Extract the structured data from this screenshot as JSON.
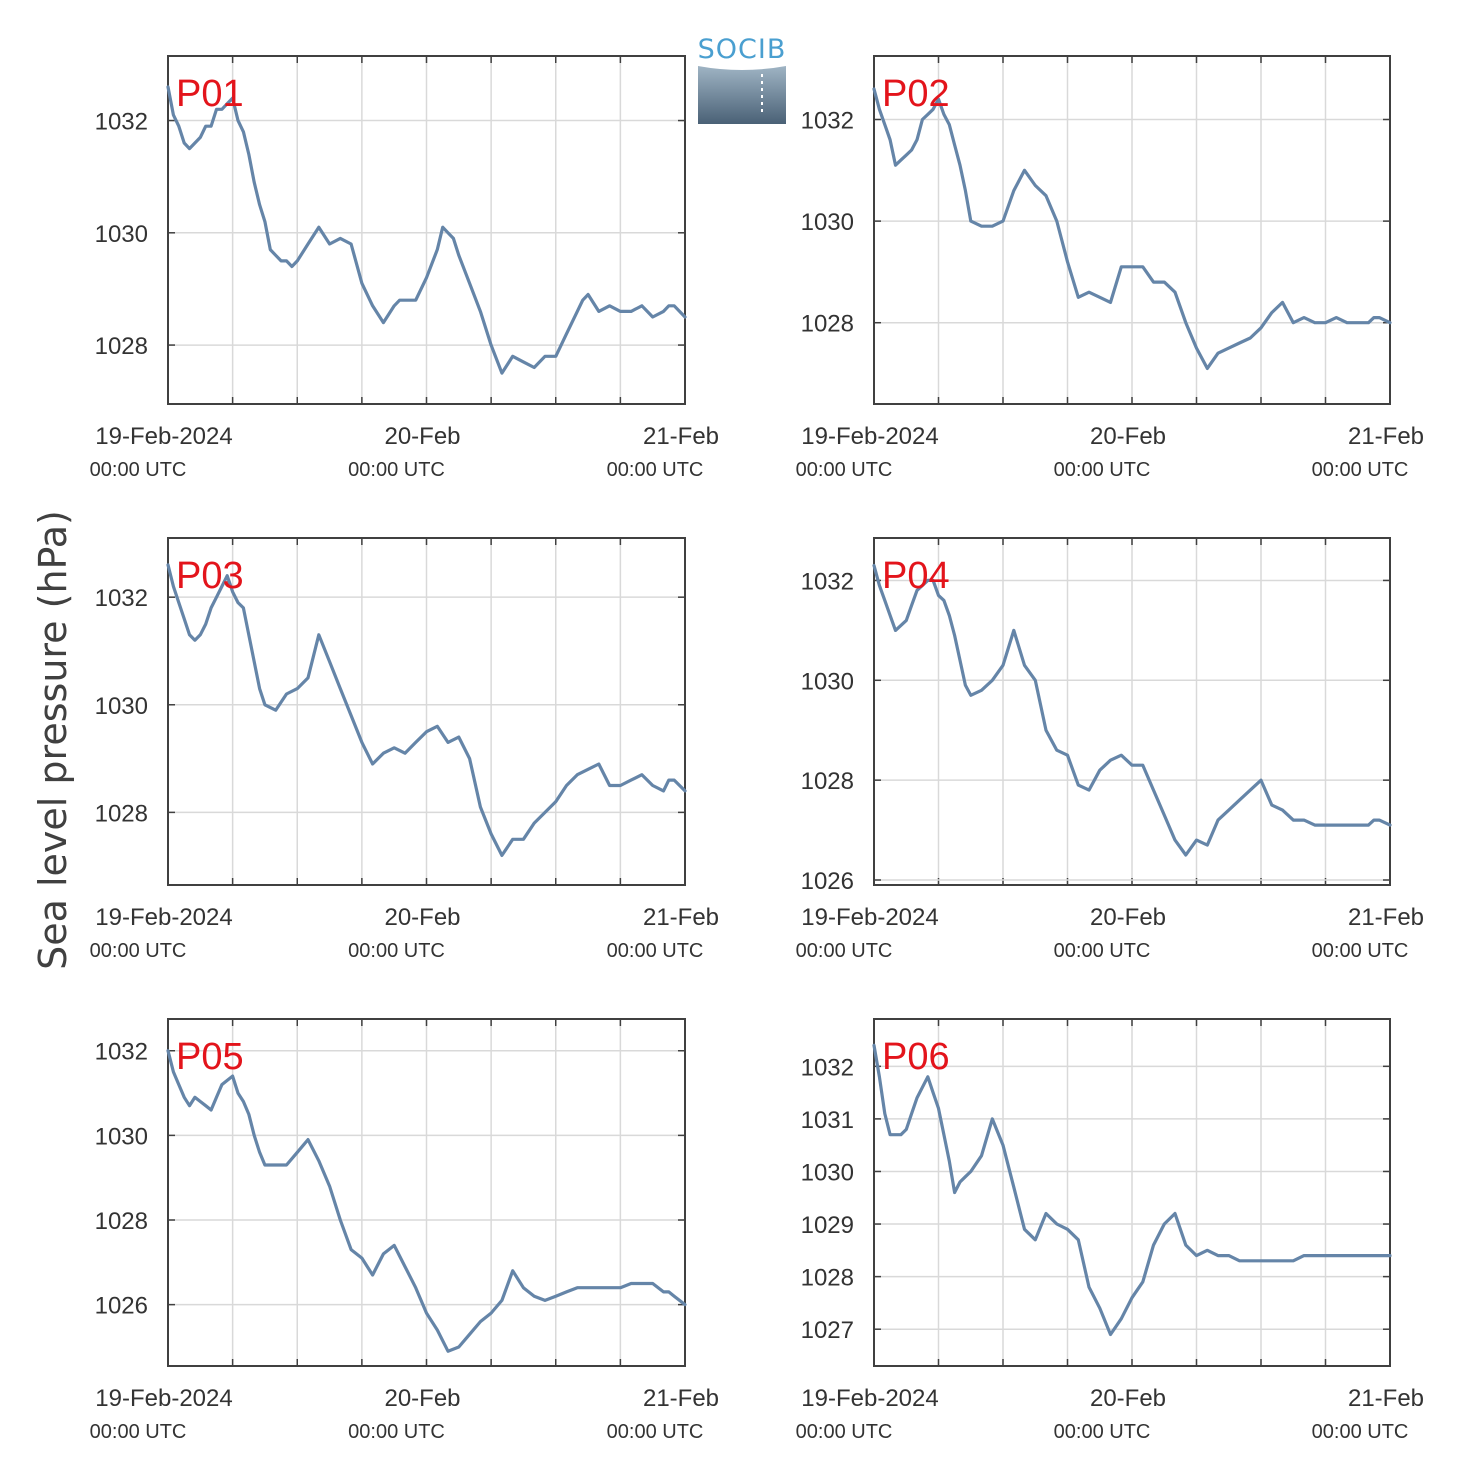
{
  "figure": {
    "ylabel": "Sea level pressure (hPa)",
    "logo_text": "SOCIB",
    "line_color": "#6585a8",
    "label_color": "#e3141b",
    "grid_color": "#d9d9d9",
    "axis_color": "#404040"
  },
  "chart_data": [
    {
      "type": "line",
      "title": "P01",
      "xlabel": "",
      "ylabel": "Sea level pressure (hPa)",
      "x_unit": "hours since 19-Feb-2024 00:00 UTC",
      "xlim": [
        0,
        48
      ],
      "ylim": [
        1026.95,
        1033.15
      ],
      "yticks": [
        1028,
        1030,
        1032
      ],
      "xticks": [
        0,
        24,
        48
      ],
      "xticklabels": [
        "19-Feb-2024",
        "20-Feb",
        "21-Feb"
      ],
      "xticksublabels": [
        "00:00 UTC",
        "00:00 UTC",
        "00:00 UTC"
      ],
      "grid": true,
      "x": [
        0,
        0.5,
        1,
        1.5,
        2,
        2.5,
        3,
        3.5,
        4,
        4.5,
        5,
        5.5,
        6,
        6.5,
        7,
        7.5,
        8,
        8.5,
        9,
        9.5,
        10,
        10.5,
        11,
        11.5,
        12,
        13,
        14,
        15,
        16,
        17,
        18,
        19,
        20,
        21,
        21.5,
        22,
        23,
        24,
        25,
        25.5,
        26,
        26.5,
        27,
        28,
        29,
        30,
        31,
        32,
        33,
        34,
        35,
        36,
        37,
        38,
        38.5,
        39,
        40,
        41,
        42,
        43,
        44,
        45,
        46,
        46.5,
        47,
        48
      ],
      "y": [
        1032.6,
        1032.1,
        1031.9,
        1031.6,
        1031.5,
        1031.6,
        1031.7,
        1031.9,
        1031.9,
        1032.2,
        1032.2,
        1032.3,
        1032.4,
        1032.0,
        1031.8,
        1031.4,
        1030.9,
        1030.5,
        1030.2,
        1029.7,
        1029.6,
        1029.5,
        1029.5,
        1029.4,
        1029.5,
        1029.8,
        1030.1,
        1029.8,
        1029.9,
        1029.8,
        1029.1,
        1028.7,
        1028.4,
        1028.7,
        1028.8,
        1028.8,
        1028.8,
        1029.2,
        1029.7,
        1030.1,
        1030.0,
        1029.9,
        1029.6,
        1029.1,
        1028.6,
        1028.0,
        1027.5,
        1027.8,
        1027.7,
        1027.6,
        1027.8,
        1027.8,
        1028.2,
        1028.6,
        1028.8,
        1028.9,
        1028.6,
        1028.7,
        1028.6,
        1028.6,
        1028.7,
        1028.5,
        1028.6,
        1028.7,
        1028.7,
        1028.5
      ]
    },
    {
      "type": "line",
      "title": "P02",
      "xlabel": "",
      "ylabel": "Sea level pressure (hPa)",
      "x_unit": "hours since 19-Feb-2024 00:00 UTC",
      "xlim": [
        0,
        48
      ],
      "ylim": [
        1026.4,
        1033.25
      ],
      "yticks": [
        1028,
        1030,
        1032
      ],
      "xticks": [
        0,
        24,
        48
      ],
      "xticklabels": [
        "19-Feb-2024",
        "20-Feb",
        "21-Feb"
      ],
      "xticksublabels": [
        "00:00 UTC",
        "00:00 UTC",
        "00:00 UTC"
      ],
      "grid": true,
      "x": [
        0,
        0.5,
        1,
        1.5,
        2,
        2.5,
        3,
        3.5,
        4,
        4.5,
        5,
        5.5,
        6,
        6.5,
        7,
        7.5,
        8,
        8.5,
        9,
        10,
        11,
        12,
        13,
        14,
        15,
        16,
        17,
        18,
        19,
        20,
        21,
        22,
        23,
        24,
        25,
        26,
        27,
        28,
        29,
        30,
        31,
        32,
        33,
        34,
        35,
        36,
        37,
        38,
        39,
        40,
        41,
        42,
        43,
        44,
        45,
        46,
        46.5,
        47,
        48
      ],
      "y": [
        1032.6,
        1032.2,
        1031.9,
        1031.6,
        1031.1,
        1031.2,
        1031.3,
        1031.4,
        1031.6,
        1032.0,
        1032.1,
        1032.2,
        1032.4,
        1032.1,
        1031.9,
        1031.5,
        1031.1,
        1030.6,
        1030.0,
        1029.9,
        1029.9,
        1030.0,
        1030.6,
        1031.0,
        1030.7,
        1030.5,
        1030.0,
        1029.2,
        1028.5,
        1028.6,
        1028.5,
        1028.4,
        1029.1,
        1029.1,
        1029.1,
        1028.8,
        1028.8,
        1028.6,
        1028.0,
        1027.5,
        1027.1,
        1027.4,
        1027.5,
        1027.6,
        1027.7,
        1027.9,
        1028.2,
        1028.4,
        1028.0,
        1028.1,
        1028.0,
        1028.0,
        1028.1,
        1028.0,
        1028.0,
        1028.0,
        1028.1,
        1028.1,
        1028.0
      ]
    },
    {
      "type": "line",
      "title": "P03",
      "xlabel": "",
      "ylabel": "Sea level pressure (hPa)",
      "x_unit": "hours since 19-Feb-2024 00:00 UTC",
      "xlim": [
        0,
        48
      ],
      "ylim": [
        1026.65,
        1033.1
      ],
      "yticks": [
        1028,
        1030,
        1032
      ],
      "xticks": [
        0,
        24,
        48
      ],
      "xticklabels": [
        "19-Feb-2024",
        "20-Feb",
        "21-Feb"
      ],
      "xticksublabels": [
        "00:00 UTC",
        "00:00 UTC",
        "00:00 UTC"
      ],
      "grid": true,
      "x": [
        0,
        0.5,
        1,
        1.5,
        2,
        2.5,
        3,
        3.5,
        4,
        4.5,
        5,
        5.5,
        6,
        6.5,
        7,
        7.5,
        8,
        8.5,
        9,
        10,
        11,
        12,
        13,
        14,
        15,
        16,
        17,
        18,
        19,
        20,
        21,
        22,
        23,
        24,
        25,
        26,
        27,
        28,
        29,
        30,
        31,
        32,
        33,
        34,
        35,
        36,
        37,
        38,
        39,
        40,
        41,
        42,
        43,
        44,
        45,
        46,
        46.5,
        47,
        48
      ],
      "y": [
        1032.6,
        1032.2,
        1031.9,
        1031.6,
        1031.3,
        1031.2,
        1031.3,
        1031.5,
        1031.8,
        1032.0,
        1032.2,
        1032.4,
        1032.1,
        1031.9,
        1031.8,
        1031.3,
        1030.8,
        1030.3,
        1030.0,
        1029.9,
        1030.2,
        1030.3,
        1030.5,
        1031.3,
        1030.8,
        1030.3,
        1029.8,
        1029.3,
        1028.9,
        1029.1,
        1029.2,
        1029.1,
        1029.3,
        1029.5,
        1029.6,
        1029.3,
        1029.4,
        1029.0,
        1028.1,
        1027.6,
        1027.2,
        1027.5,
        1027.5,
        1027.8,
        1028.0,
        1028.2,
        1028.5,
        1028.7,
        1028.8,
        1028.9,
        1028.5,
        1028.5,
        1028.6,
        1028.7,
        1028.5,
        1028.4,
        1028.6,
        1028.6,
        1028.4
      ]
    },
    {
      "type": "line",
      "title": "P04",
      "xlabel": "",
      "ylabel": "Sea level pressure (hPa)",
      "x_unit": "hours since 19-Feb-2024 00:00 UTC",
      "xlim": [
        0,
        48
      ],
      "ylim": [
        1025.9,
        1032.85
      ],
      "yticks": [
        1026,
        1028,
        1030,
        1032
      ],
      "xticks": [
        0,
        24,
        48
      ],
      "xticklabels": [
        "19-Feb-2024",
        "20-Feb",
        "21-Feb"
      ],
      "xticksublabels": [
        "00:00 UTC",
        "00:00 UTC",
        "00:00 UTC"
      ],
      "grid": true,
      "x": [
        0,
        0.5,
        1,
        1.5,
        2,
        2.5,
        3,
        3.5,
        4,
        4.5,
        5,
        5.5,
        6,
        6.5,
        7,
        7.5,
        8,
        8.5,
        9,
        10,
        11,
        12,
        13,
        14,
        15,
        16,
        17,
        18,
        19,
        20,
        21,
        22,
        23,
        24,
        25,
        26,
        27,
        28,
        29,
        30,
        31,
        32,
        33,
        34,
        35,
        36,
        37,
        38,
        39,
        40,
        41,
        42,
        43,
        44,
        45,
        46,
        46.5,
        47,
        48
      ],
      "y": [
        1032.3,
        1031.9,
        1031.6,
        1031.3,
        1031.0,
        1031.1,
        1031.2,
        1031.5,
        1031.8,
        1031.9,
        1032.0,
        1032.0,
        1031.7,
        1031.6,
        1031.3,
        1030.9,
        1030.4,
        1029.9,
        1029.7,
        1029.8,
        1030.0,
        1030.3,
        1031.0,
        1030.3,
        1030.0,
        1029.0,
        1028.6,
        1028.5,
        1027.9,
        1027.8,
        1028.2,
        1028.4,
        1028.5,
        1028.3,
        1028.3,
        1027.8,
        1027.3,
        1026.8,
        1026.5,
        1026.8,
        1026.7,
        1027.2,
        1027.4,
        1027.6,
        1027.8,
        1028.0,
        1027.5,
        1027.4,
        1027.2,
        1027.2,
        1027.1,
        1027.1,
        1027.1,
        1027.1,
        1027.1,
        1027.1,
        1027.2,
        1027.2,
        1027.1
      ]
    },
    {
      "type": "line",
      "title": "P05",
      "xlabel": "",
      "ylabel": "Sea level pressure (hPa)",
      "x_unit": "hours since 19-Feb-2024 00:00 UTC",
      "xlim": [
        0,
        48
      ],
      "ylim": [
        1024.55,
        1032.75
      ],
      "yticks": [
        1026,
        1028,
        1030,
        1032
      ],
      "xticks": [
        0,
        24,
        48
      ],
      "xticklabels": [
        "19-Feb-2024",
        "20-Feb",
        "21-Feb"
      ],
      "xticksublabels": [
        "00:00 UTC",
        "00:00 UTC",
        "00:00 UTC"
      ],
      "grid": true,
      "x": [
        0,
        0.5,
        1,
        1.5,
        2,
        2.5,
        3,
        3.5,
        4,
        4.5,
        5,
        5.5,
        6,
        6.5,
        7,
        7.5,
        8,
        8.5,
        9,
        10,
        11,
        12,
        13,
        14,
        15,
        16,
        17,
        18,
        19,
        20,
        21,
        22,
        23,
        24,
        25,
        26,
        27,
        28,
        29,
        30,
        31,
        32,
        33,
        34,
        35,
        36,
        37,
        38,
        39,
        40,
        41,
        42,
        43,
        44,
        45,
        46,
        46.5,
        47,
        48
      ],
      "y": [
        1032.0,
        1031.5,
        1031.2,
        1030.9,
        1030.7,
        1030.9,
        1030.8,
        1030.7,
        1030.6,
        1030.9,
        1031.2,
        1031.3,
        1031.4,
        1031.0,
        1030.8,
        1030.5,
        1030.0,
        1029.6,
        1029.3,
        1029.3,
        1029.3,
        1029.6,
        1029.9,
        1029.4,
        1028.8,
        1028.0,
        1027.3,
        1027.1,
        1026.7,
        1027.2,
        1027.4,
        1026.9,
        1026.4,
        1025.8,
        1025.4,
        1024.9,
        1025.0,
        1025.3,
        1025.6,
        1025.8,
        1026.1,
        1026.8,
        1026.4,
        1026.2,
        1026.1,
        1026.2,
        1026.3,
        1026.4,
        1026.4,
        1026.4,
        1026.4,
        1026.4,
        1026.5,
        1026.5,
        1026.5,
        1026.3,
        1026.3,
        1026.2,
        1026.0
      ]
    },
    {
      "type": "line",
      "title": "P06",
      "xlabel": "",
      "ylabel": "Sea level pressure (hPa)",
      "x_unit": "hours since 19-Feb-2024 00:00 UTC",
      "xlim": [
        0,
        48
      ],
      "ylim": [
        1026.3,
        1032.9
      ],
      "yticks": [
        1027,
        1028,
        1029,
        1030,
        1031,
        1032
      ],
      "xticks": [
        0,
        24,
        48
      ],
      "xticklabels": [
        "19-Feb-2024",
        "20-Feb",
        "21-Feb"
      ],
      "xticksublabels": [
        "00:00 UTC",
        "00:00 UTC",
        "00:00 UTC"
      ],
      "grid": true,
      "x": [
        0,
        0.5,
        1,
        1.5,
        2,
        2.5,
        3,
        3.5,
        4,
        4.5,
        5,
        5.5,
        6,
        6.5,
        7,
        7.5,
        8,
        8.5,
        9,
        10,
        11,
        12,
        13,
        14,
        15,
        16,
        17,
        18,
        19,
        20,
        21,
        22,
        23,
        24,
        25,
        26,
        27,
        28,
        29,
        30,
        31,
        32,
        33,
        34,
        35,
        36,
        37,
        38,
        39,
        40,
        41,
        42,
        43,
        44,
        45,
        46,
        46.5,
        47,
        48
      ],
      "y": [
        1032.4,
        1031.8,
        1031.1,
        1030.7,
        1030.7,
        1030.7,
        1030.8,
        1031.1,
        1031.4,
        1031.6,
        1031.8,
        1031.5,
        1031.2,
        1030.7,
        1030.2,
        1029.6,
        1029.8,
        1029.9,
        1030.0,
        1030.3,
        1031.0,
        1030.5,
        1029.7,
        1028.9,
        1028.7,
        1029.2,
        1029.0,
        1028.9,
        1028.7,
        1027.8,
        1027.4,
        1026.9,
        1027.2,
        1027.6,
        1027.9,
        1028.6,
        1029.0,
        1029.2,
        1028.6,
        1028.4,
        1028.5,
        1028.4,
        1028.4,
        1028.3,
        1028.3,
        1028.3,
        1028.3,
        1028.3,
        1028.3,
        1028.4,
        1028.4,
        1028.4,
        1028.4,
        1028.4,
        1028.4,
        1028.4,
        1028.4,
        1028.4,
        1028.4
      ]
    }
  ]
}
